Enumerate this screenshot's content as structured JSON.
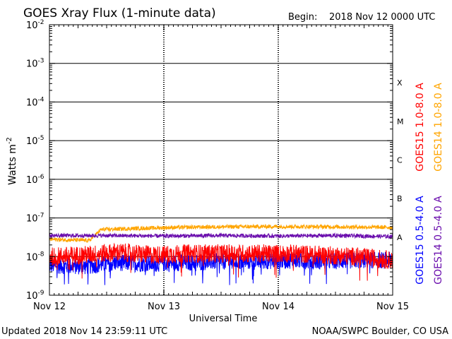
{
  "chart_data": {
    "type": "line",
    "title": "GOES Xray Flux (1-minute data)",
    "begin_label": "Begin:",
    "begin_value": "2018 Nov 12 0000 UTC",
    "xlabel": "Universal Time",
    "ylabel": "Watts m",
    "ylabel_exp": "-2",
    "yscale": "log",
    "ylim": [
      1e-09,
      0.01
    ],
    "y_ticks": [
      {
        "base": "10",
        "exp": "-2",
        "value": 0.01
      },
      {
        "base": "10",
        "exp": "-3",
        "value": 0.001
      },
      {
        "base": "10",
        "exp": "-4",
        "value": 0.0001
      },
      {
        "base": "10",
        "exp": "-5",
        "value": 1e-05
      },
      {
        "base": "10",
        "exp": "-6",
        "value": 1e-06
      },
      {
        "base": "10",
        "exp": "-7",
        "value": 1e-07
      },
      {
        "base": "10",
        "exp": "-8",
        "value": 1e-08
      },
      {
        "base": "10",
        "exp": "-9",
        "value": 1e-09
      }
    ],
    "x_ticks": [
      "Nov 12",
      "Nov 13",
      "Nov 14",
      "Nov 15"
    ],
    "xlim_days": [
      0,
      3
    ],
    "flare_classes": [
      {
        "label": "X",
        "value": 0.0001
      },
      {
        "label": "M",
        "value": 1e-05
      },
      {
        "label": "C",
        "value": 1e-06
      },
      {
        "label": "B",
        "value": 1e-07
      },
      {
        "label": "A",
        "value": 1e-08
      }
    ],
    "grid": "horizontal lines at 1e-3 to 1e-7",
    "data_end_day": 2.9994,
    "series": [
      {
        "name": "GOES15 1.0-8.0 A",
        "color": "#ff0000",
        "points": [
          [
            0.0,
            1e-08
          ],
          [
            0.3,
            1.1e-08
          ],
          [
            0.6,
            1.3e-08
          ],
          [
            0.9,
            1.1e-08
          ],
          [
            1.2,
            1.2e-08
          ],
          [
            1.5,
            1.2e-08
          ],
          [
            1.8,
            1.2e-08
          ],
          [
            2.1,
            1.2e-08
          ],
          [
            2.4,
            1.1e-08
          ],
          [
            2.7,
            1e-08
          ],
          [
            3.0,
            8e-09
          ]
        ]
      },
      {
        "name": "GOES14 1.0-8.0 A",
        "color": "#ffa500",
        "points": [
          [
            0.0,
            2.8e-08
          ],
          [
            0.35,
            2.6e-08
          ],
          [
            0.45,
            5e-08
          ],
          [
            1.0,
            5.6e-08
          ],
          [
            1.5,
            5.9e-08
          ],
          [
            2.0,
            6e-08
          ],
          [
            2.5,
            5.9e-08
          ],
          [
            3.0,
            5.7e-08
          ]
        ]
      },
      {
        "name": "GOES15 0.5-4.0 A",
        "color": "#0000ff",
        "points": [
          [
            0.0,
            6e-09
          ],
          [
            0.3,
            5.5e-09
          ],
          [
            0.6,
            7e-09
          ],
          [
            0.9,
            6.5e-09
          ],
          [
            1.2,
            7e-09
          ],
          [
            1.5,
            7.5e-09
          ],
          [
            1.8,
            7.5e-09
          ],
          [
            2.1,
            8e-09
          ],
          [
            2.4,
            7.5e-09
          ],
          [
            2.7,
            8e-09
          ],
          [
            3.0,
            8e-09
          ]
        ]
      },
      {
        "name": "GOES14 0.5-4.0 A",
        "color": "#6a0dad",
        "points": [
          [
            0.0,
            3.5e-08
          ],
          [
            0.45,
            3.5e-08
          ],
          [
            1.0,
            3.4e-08
          ],
          [
            1.5,
            3.5e-08
          ],
          [
            2.0,
            3.4e-08
          ],
          [
            2.5,
            3.5e-08
          ],
          [
            3.0,
            3.3e-08
          ]
        ]
      }
    ]
  },
  "footer": {
    "updated": "Updated 2018 Nov 14 23:59:11 UTC",
    "credit": "NOAA/SWPC Boulder, CO USA"
  }
}
